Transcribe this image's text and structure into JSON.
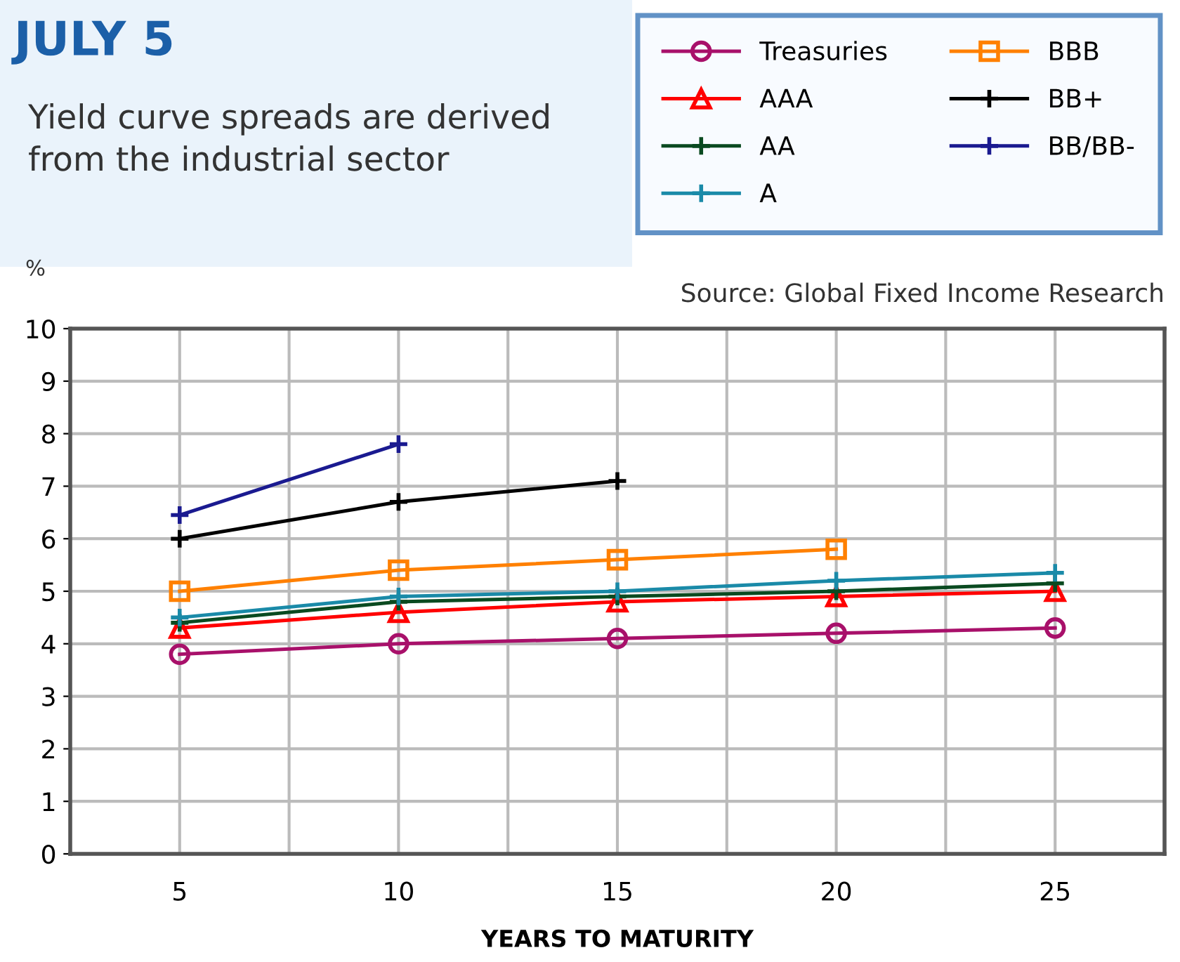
{
  "chart_data": {
    "type": "line",
    "title": "JULY 5",
    "subtitle": "Yield curve spreads are derived\nfrom the industrial sector",
    "xlabel": "YEARS TO MATURITY",
    "ylabel": "%",
    "annotations": [
      "Source: Global Fixed Income Research"
    ],
    "x": [
      5,
      10,
      15,
      20,
      25
    ],
    "series": [
      {
        "name": "Treasuries",
        "color": "#a8106a",
        "marker": "circle",
        "values": [
          3.8,
          4.0,
          4.1,
          4.2,
          4.3
        ]
      },
      {
        "name": "AAA",
        "color": "#ff0000",
        "marker": "triangle",
        "values": [
          4.3,
          4.6,
          4.8,
          4.9,
          5.0
        ]
      },
      {
        "name": "AA",
        "color": "#0a4a20",
        "marker": "cross",
        "values": [
          4.4,
          4.8,
          4.9,
          5.0,
          5.15
        ]
      },
      {
        "name": "A",
        "color": "#1a8aa8",
        "marker": "cross",
        "values": [
          4.5,
          4.9,
          5.0,
          5.2,
          5.35
        ]
      },
      {
        "name": "BBB",
        "color": "#ff8000",
        "marker": "square",
        "values": [
          5.0,
          5.4,
          5.6,
          5.8,
          null
        ]
      },
      {
        "name": "BB+",
        "color": "#000000",
        "marker": "cross",
        "values": [
          6.0,
          6.7,
          7.1,
          null,
          null
        ]
      },
      {
        "name": "BB/BB-",
        "color": "#1a1a90",
        "marker": "cross",
        "values": [
          6.45,
          7.8,
          null,
          null,
          null
        ]
      }
    ],
    "xlim": [
      2.5,
      27.5
    ],
    "xticks": [
      5,
      {
        "value": 7.5,
        "label": null
      },
      10,
      {
        "value": 12.5,
        "label": null
      },
      15,
      {
        "value": 17.5,
        "label": null
      },
      20,
      {
        "value": 22.5,
        "label": null
      },
      25
    ],
    "ylim": [
      0,
      10
    ],
    "yticks": [
      0,
      1,
      2,
      3,
      4,
      5,
      6,
      7,
      8,
      9,
      10
    ],
    "grid": true,
    "legend": "top right",
    "line_style": "solid"
  }
}
